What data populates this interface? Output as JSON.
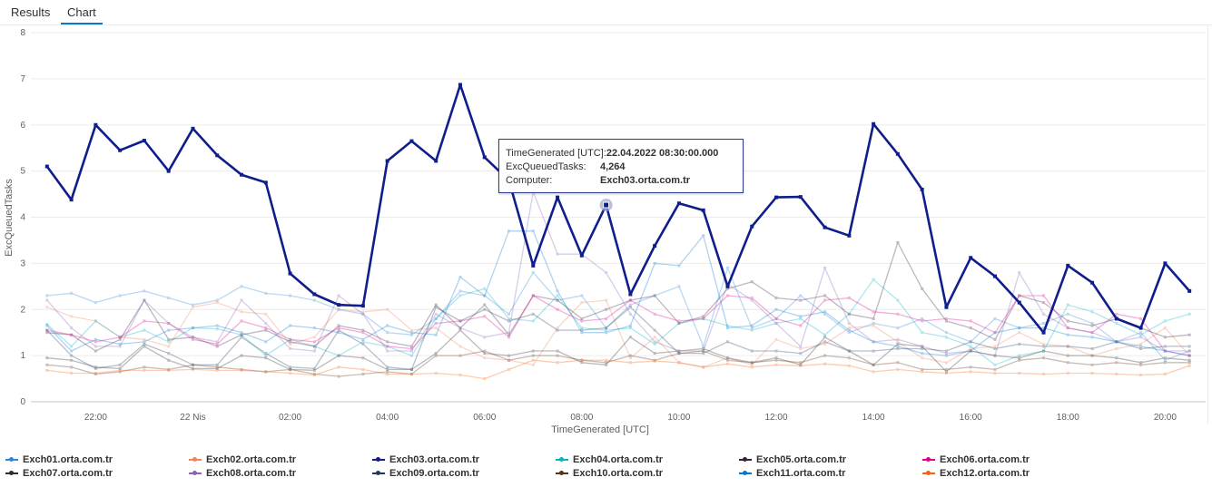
{
  "tabs": [
    {
      "label": "Results",
      "active": false
    },
    {
      "label": "Chart",
      "active": true
    }
  ],
  "tooltip": {
    "rows": [
      {
        "key": "TimeGenerated [UTC]:",
        "value": "22.04.2022 08:30:00.000"
      },
      {
        "key": "ExcQueuedTasks:",
        "value": "4,264"
      },
      {
        "key": "Computer:",
        "value": "Exch03.orta.com.tr"
      }
    ]
  },
  "chart_data": {
    "type": "line",
    "xlabel": "TimeGenerated [UTC]",
    "ylabel": "ExcQueuedTasks",
    "ylim": [
      0,
      8
    ],
    "yticks": [
      0,
      1,
      2,
      3,
      4,
      5,
      6,
      7,
      8
    ],
    "xlim": [
      "2022-04-21 20:40",
      "2022-04-22 20:50"
    ],
    "xticks": [
      {
        "t": "2022-04-21 22:00",
        "label": "22:00"
      },
      {
        "t": "2022-04-22 00:00",
        "label": "22 Nis"
      },
      {
        "t": "2022-04-22 02:00",
        "label": "02:00"
      },
      {
        "t": "2022-04-22 04:00",
        "label": "04:00"
      },
      {
        "t": "2022-04-22 06:00",
        "label": "06:00"
      },
      {
        "t": "2022-04-22 08:00",
        "label": "08:00"
      },
      {
        "t": "2022-04-22 10:00",
        "label": "10:00"
      },
      {
        "t": "2022-04-22 12:00",
        "label": "12:00"
      },
      {
        "t": "2022-04-22 14:00",
        "label": "14:00"
      },
      {
        "t": "2022-04-22 16:00",
        "label": "16:00"
      },
      {
        "t": "2022-04-22 18:00",
        "label": "18:00"
      },
      {
        "t": "2022-04-22 20:00",
        "label": "20:00"
      }
    ],
    "x_start": "2022-04-21 21:00",
    "x_step_minutes": 30,
    "grid": "horizontal",
    "legend": "bottom",
    "highlight": {
      "series": "Exch03.orta.com.tr",
      "t": "2022-04-22 08:30",
      "y": 4.264
    },
    "series": [
      {
        "name": "Exch01.orta.com.tr",
        "color": "#2b88d8",
        "emphasis": false,
        "values": [
          2.3,
          2.35,
          2.15,
          2.3,
          2.4,
          2.25,
          2.1,
          2.2,
          2.5,
          2.35,
          2.3,
          2.2,
          2.0,
          1.9,
          1.5,
          1.45,
          1.8,
          2.4,
          2.3,
          1.9,
          2.8,
          2.2,
          2.3,
          1.6,
          2.1,
          2.3,
          2.5,
          1.2,
          2.9,
          1.6,
          1.8,
          2.3,
          1.9,
          1.5,
          1.7,
          1.6,
          1.8,
          1.5,
          1.3,
          1.8,
          1.6,
          1.7,
          1.9,
          1.7,
          1.3,
          1.5,
          0.9,
          1.1
        ]
      },
      {
        "name": "Exch02.orta.com.tr",
        "color": "#f4825d",
        "emphasis": false,
        "values": [
          2.05,
          1.85,
          1.75,
          1.4,
          1.35,
          1.2,
          2.05,
          2.15,
          1.95,
          1.9,
          1.25,
          1.4,
          2.0,
          1.95,
          2.0,
          1.55,
          1.6,
          1.2,
          0.95,
          0.9,
          0.8,
          1.6,
          2.15,
          2.2,
          0.95,
          1.4,
          0.85,
          0.75,
          0.95,
          0.8,
          1.35,
          1.15,
          1.25,
          1.6,
          1.65,
          1.3,
          0.95,
          0.85,
          1.15,
          1.2,
          1.5,
          1.25,
          1.2,
          1.0,
          1.15,
          1.25,
          1.6,
          1.0
        ]
      },
      {
        "name": "Exch03.orta.com.tr",
        "color": "#0f1e8c",
        "emphasis": true,
        "values": [
          5.1,
          4.38,
          6.0,
          5.45,
          5.66,
          5.0,
          5.92,
          5.34,
          4.92,
          4.75,
          2.78,
          2.33,
          2.1,
          2.08,
          5.22,
          5.65,
          5.22,
          6.87,
          5.3,
          4.8,
          2.95,
          4.43,
          3.17,
          4.264,
          2.33,
          3.38,
          4.3,
          4.15,
          2.5,
          3.8,
          4.43,
          4.44,
          3.78,
          3.6,
          6.02,
          5.37,
          4.6,
          2.05,
          3.12,
          2.72,
          2.15,
          1.5,
          2.95,
          2.58,
          1.8,
          1.6,
          3.0,
          2.4
        ]
      },
      {
        "name": "Exch04.orta.com.tr",
        "color": "#00b7c3",
        "emphasis": false,
        "values": [
          1.68,
          1.2,
          1.75,
          1.4,
          1.55,
          1.3,
          1.6,
          1.58,
          1.45,
          1.0,
          1.35,
          1.2,
          1.0,
          1.3,
          1.2,
          1.0,
          1.8,
          2.3,
          2.45,
          1.8,
          1.75,
          2.3,
          1.6,
          1.55,
          1.6,
          1.25,
          1.7,
          1.8,
          1.65,
          1.55,
          1.7,
          1.8,
          1.45,
          1.9,
          2.65,
          2.2,
          1.5,
          1.4,
          1.2,
          0.8,
          1.0,
          1.1,
          2.1,
          1.95,
          1.7,
          1.45,
          1.75,
          1.9
        ]
      },
      {
        "name": "Exch05.orta.com.tr",
        "color": "#3a1f3d",
        "emphasis": false,
        "values": [
          1.5,
          1.45,
          1.1,
          1.35,
          2.2,
          1.35,
          1.4,
          1.2,
          1.45,
          1.55,
          1.3,
          1.2,
          1.65,
          1.55,
          1.3,
          1.2,
          2.1,
          1.6,
          2.1,
          1.45,
          2.3,
          2.2,
          1.8,
          2.0,
          2.2,
          2.3,
          1.7,
          1.85,
          2.45,
          2.6,
          2.25,
          2.2,
          2.3,
          1.9,
          1.8,
          3.45,
          2.45,
          1.75,
          1.6,
          1.35,
          2.3,
          2.15,
          1.75,
          1.65,
          1.8,
          1.6,
          1.4,
          1.45
        ]
      },
      {
        "name": "Exch06.orta.com.tr",
        "color": "#e3008c",
        "emphasis": false,
        "values": [
          1.55,
          1.45,
          1.3,
          1.4,
          1.75,
          1.7,
          1.35,
          1.25,
          1.75,
          1.6,
          1.35,
          1.3,
          1.6,
          1.5,
          1.2,
          1.15,
          1.7,
          1.75,
          1.85,
          1.4,
          2.3,
          2.0,
          1.75,
          1.8,
          2.2,
          1.9,
          1.75,
          1.8,
          2.3,
          2.25,
          1.8,
          1.65,
          2.2,
          2.25,
          1.95,
          1.9,
          1.75,
          1.8,
          1.75,
          1.5,
          2.3,
          2.3,
          1.6,
          1.5,
          1.9,
          1.8,
          1.1,
          1.0
        ]
      },
      {
        "name": "Exch07.orta.com.tr",
        "color": "#2d2d2d",
        "emphasis": false,
        "values": [
          0.95,
          0.9,
          0.75,
          0.72,
          1.2,
          0.9,
          0.72,
          0.72,
          1.0,
          0.95,
          0.7,
          0.68,
          1.0,
          0.95,
          0.7,
          0.7,
          1.05,
          1.55,
          1.05,
          1.0,
          1.1,
          1.1,
          0.85,
          0.8,
          1.4,
          1.05,
          1.1,
          1.15,
          0.95,
          0.85,
          0.95,
          0.8,
          1.4,
          1.1,
          0.8,
          1.25,
          1.2,
          0.65,
          1.1,
          1.0,
          0.95,
          1.1,
          1.0,
          1.0,
          0.95,
          0.85,
          0.95,
          0.9
        ]
      },
      {
        "name": "Exch08.orta.com.tr",
        "color": "#8764b8",
        "emphasis": false,
        "values": [
          2.2,
          1.6,
          1.2,
          1.2,
          2.2,
          1.7,
          1.4,
          1.3,
          2.2,
          1.7,
          1.15,
          1.1,
          2.3,
          1.9,
          1.1,
          1.1,
          1.9,
          1.6,
          1.4,
          1.5,
          4.55,
          3.2,
          3.2,
          2.8,
          1.9,
          1.3,
          1.1,
          1.1,
          2.55,
          2.2,
          1.7,
          1.2,
          2.9,
          1.7,
          1.3,
          1.35,
          1.2,
          1.05,
          1.1,
          1.0,
          2.8,
          1.9,
          1.6,
          1.5,
          1.3,
          1.4,
          1.1,
          1.1
        ]
      },
      {
        "name": "Exch09.orta.com.tr",
        "color": "#1f3a5f",
        "emphasis": false,
        "values": [
          1.55,
          1.0,
          0.72,
          0.8,
          1.25,
          1.05,
          0.8,
          0.8,
          1.4,
          1.05,
          0.75,
          0.72,
          1.55,
          1.25,
          0.75,
          0.7,
          2.05,
          1.75,
          2.0,
          1.75,
          1.9,
          1.55,
          1.55,
          1.6,
          2.05,
          1.55,
          1.05,
          1.05,
          1.3,
          1.1,
          1.1,
          1.05,
          1.3,
          1.1,
          1.1,
          1.15,
          1.15,
          1.1,
          1.3,
          1.15,
          1.25,
          1.2,
          1.2,
          1.15,
          1.3,
          1.15,
          1.2,
          1.2
        ]
      },
      {
        "name": "Exch10.orta.com.tr",
        "color": "#5c3317",
        "emphasis": false,
        "values": [
          0.8,
          0.75,
          0.6,
          0.65,
          0.75,
          0.7,
          0.8,
          0.75,
          0.7,
          0.65,
          0.7,
          0.6,
          0.55,
          0.6,
          0.65,
          0.6,
          1.0,
          1.0,
          1.1,
          0.9,
          1.0,
          1.0,
          0.9,
          0.85,
          1.0,
          0.9,
          1.05,
          1.1,
          0.9,
          0.85,
          0.9,
          0.85,
          1.0,
          0.95,
          0.8,
          0.85,
          0.7,
          0.7,
          0.75,
          0.7,
          0.9,
          0.95,
          0.85,
          0.8,
          0.85,
          0.8,
          0.85,
          0.85
        ]
      },
      {
        "name": "Exch11.orta.com.tr",
        "color": "#0078d4",
        "emphasis": false,
        "values": [
          1.65,
          1.1,
          1.35,
          1.25,
          1.3,
          1.55,
          1.6,
          1.65,
          1.5,
          1.3,
          1.65,
          1.6,
          1.5,
          1.35,
          1.65,
          1.5,
          1.45,
          2.7,
          2.3,
          3.7,
          3.7,
          2.4,
          1.5,
          1.5,
          1.65,
          3.0,
          2.95,
          3.6,
          1.6,
          1.65,
          2.0,
          1.85,
          1.95,
          1.55,
          1.3,
          1.2,
          1.05,
          1.0,
          1.1,
          1.5,
          1.6,
          1.6,
          1.45,
          1.4,
          1.3,
          1.2,
          1.1,
          1.0
        ]
      },
      {
        "name": "Exch12.orta.com.tr",
        "color": "#f7630c",
        "emphasis": false,
        "values": [
          0.68,
          0.62,
          0.62,
          0.68,
          0.68,
          0.68,
          0.7,
          0.68,
          0.68,
          0.65,
          0.62,
          0.58,
          0.75,
          0.7,
          0.6,
          0.6,
          0.62,
          0.58,
          0.5,
          0.7,
          0.9,
          0.85,
          0.9,
          0.9,
          0.85,
          0.88,
          0.85,
          0.75,
          0.82,
          0.75,
          0.8,
          0.78,
          0.82,
          0.78,
          0.65,
          0.7,
          0.65,
          0.62,
          0.65,
          0.62,
          0.62,
          0.6,
          0.62,
          0.62,
          0.6,
          0.58,
          0.6,
          0.78
        ]
      }
    ]
  }
}
